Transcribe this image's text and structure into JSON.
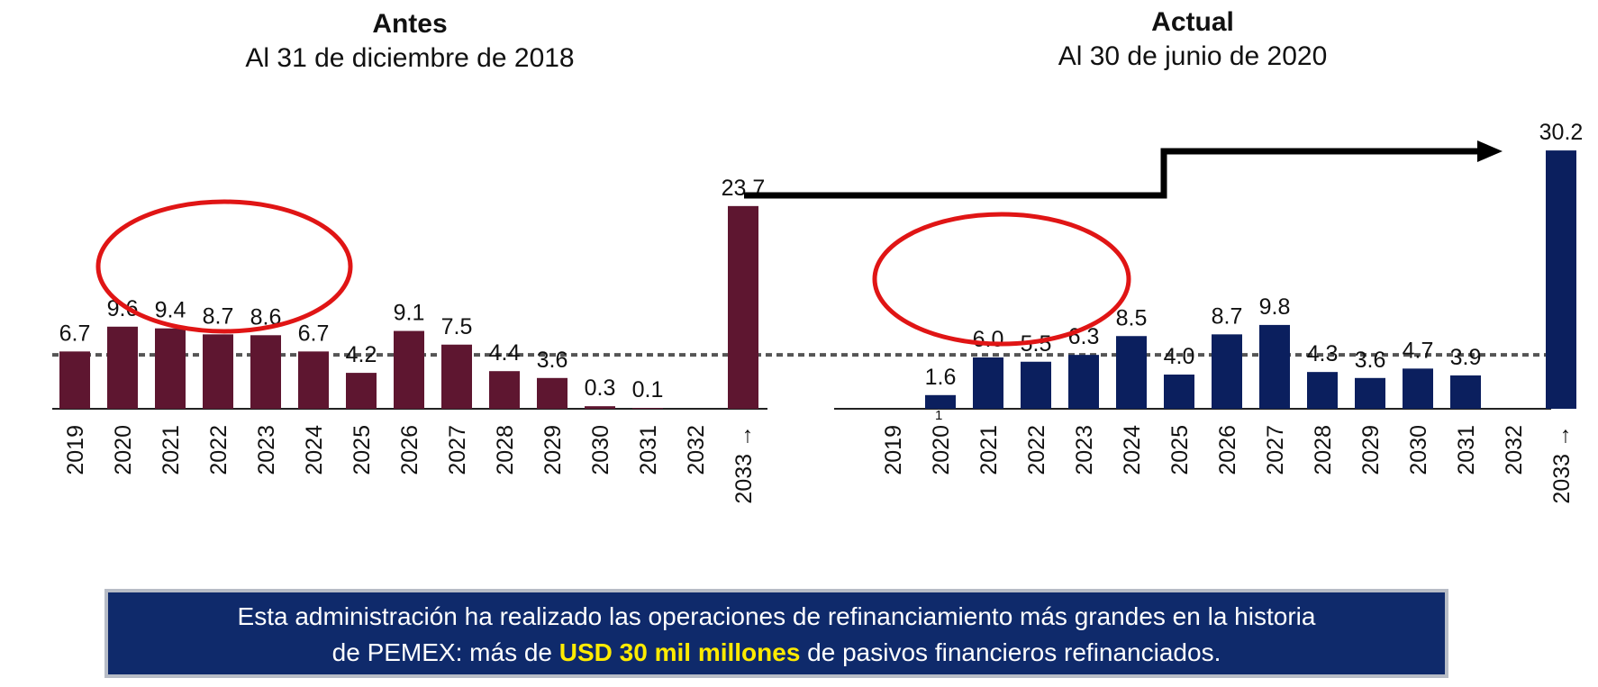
{
  "titles": {
    "left_heading": "Antes",
    "left_subheading": "Al 31 de diciembre de 2018",
    "right_heading": "Actual",
    "right_subheading": "Al 30 de junio de 2020"
  },
  "banner": {
    "text_part1": "Esta administración ha realizado las operaciones de refinanciamiento más grandes en la historia",
    "text_part2": "de PEMEX: más de ",
    "highlight": "USD 30 mil millones",
    "text_part3": " de pasivos financieros refinanciados."
  },
  "colors": {
    "antes_bar": "#5e1630",
    "actual_bar": "#0b1f5e",
    "circle": "#e01515",
    "banner_bg": "#0f2a6b",
    "banner_highlight": "#ffeb00"
  },
  "chart_data": [
    {
      "type": "bar",
      "title": "Antes",
      "subtitle": "Al 31 de diciembre de 2018",
      "categories": [
        "2019",
        "2020",
        "2021",
        "2022",
        "2023",
        "2024",
        "2025",
        "2026",
        "2027",
        "2028",
        "2029",
        "2030",
        "2031",
        "2032",
        "2033 →"
      ],
      "values": [
        6.7,
        9.6,
        9.4,
        8.7,
        8.6,
        6.7,
        4.2,
        9.1,
        7.5,
        4.4,
        3.6,
        0.3,
        0.1,
        null,
        23.7
      ],
      "labels": [
        "6.7",
        "9.6",
        "9.4",
        "8.7",
        "8.6",
        "6.7",
        "4.2",
        "9.1",
        "7.5",
        "4.4",
        "3.6",
        "0.3",
        "0.1",
        "",
        "23.7"
      ],
      "reference_line": 6.3,
      "ylim": [
        0,
        31
      ]
    },
    {
      "type": "bar",
      "title": "Actual",
      "subtitle": "Al 30 de junio de 2020",
      "categories": [
        "2019",
        "2020",
        "2021",
        "2022",
        "2023",
        "2024",
        "2025",
        "2026",
        "2027",
        "2028",
        "2029",
        "2030",
        "2031",
        "2032",
        "2033 →"
      ],
      "category_superscripts": [
        "",
        "1",
        "",
        "",
        "",
        "",
        "",
        "",
        "",
        "",
        "",
        "",
        "",
        "",
        ""
      ],
      "values": [
        null,
        1.6,
        6.0,
        5.5,
        6.3,
        8.5,
        4.0,
        8.7,
        9.8,
        4.3,
        3.6,
        4.7,
        3.9,
        null,
        30.2
      ],
      "labels": [
        "",
        "1.6",
        "6.0",
        "5.5",
        "6.3",
        "8.5",
        "4.0",
        "8.7",
        "9.8",
        "4.3",
        "3.6",
        "4.7",
        "3.9",
        "",
        "30.2"
      ],
      "reference_line": 6.3,
      "ylim": [
        0,
        31
      ]
    }
  ]
}
